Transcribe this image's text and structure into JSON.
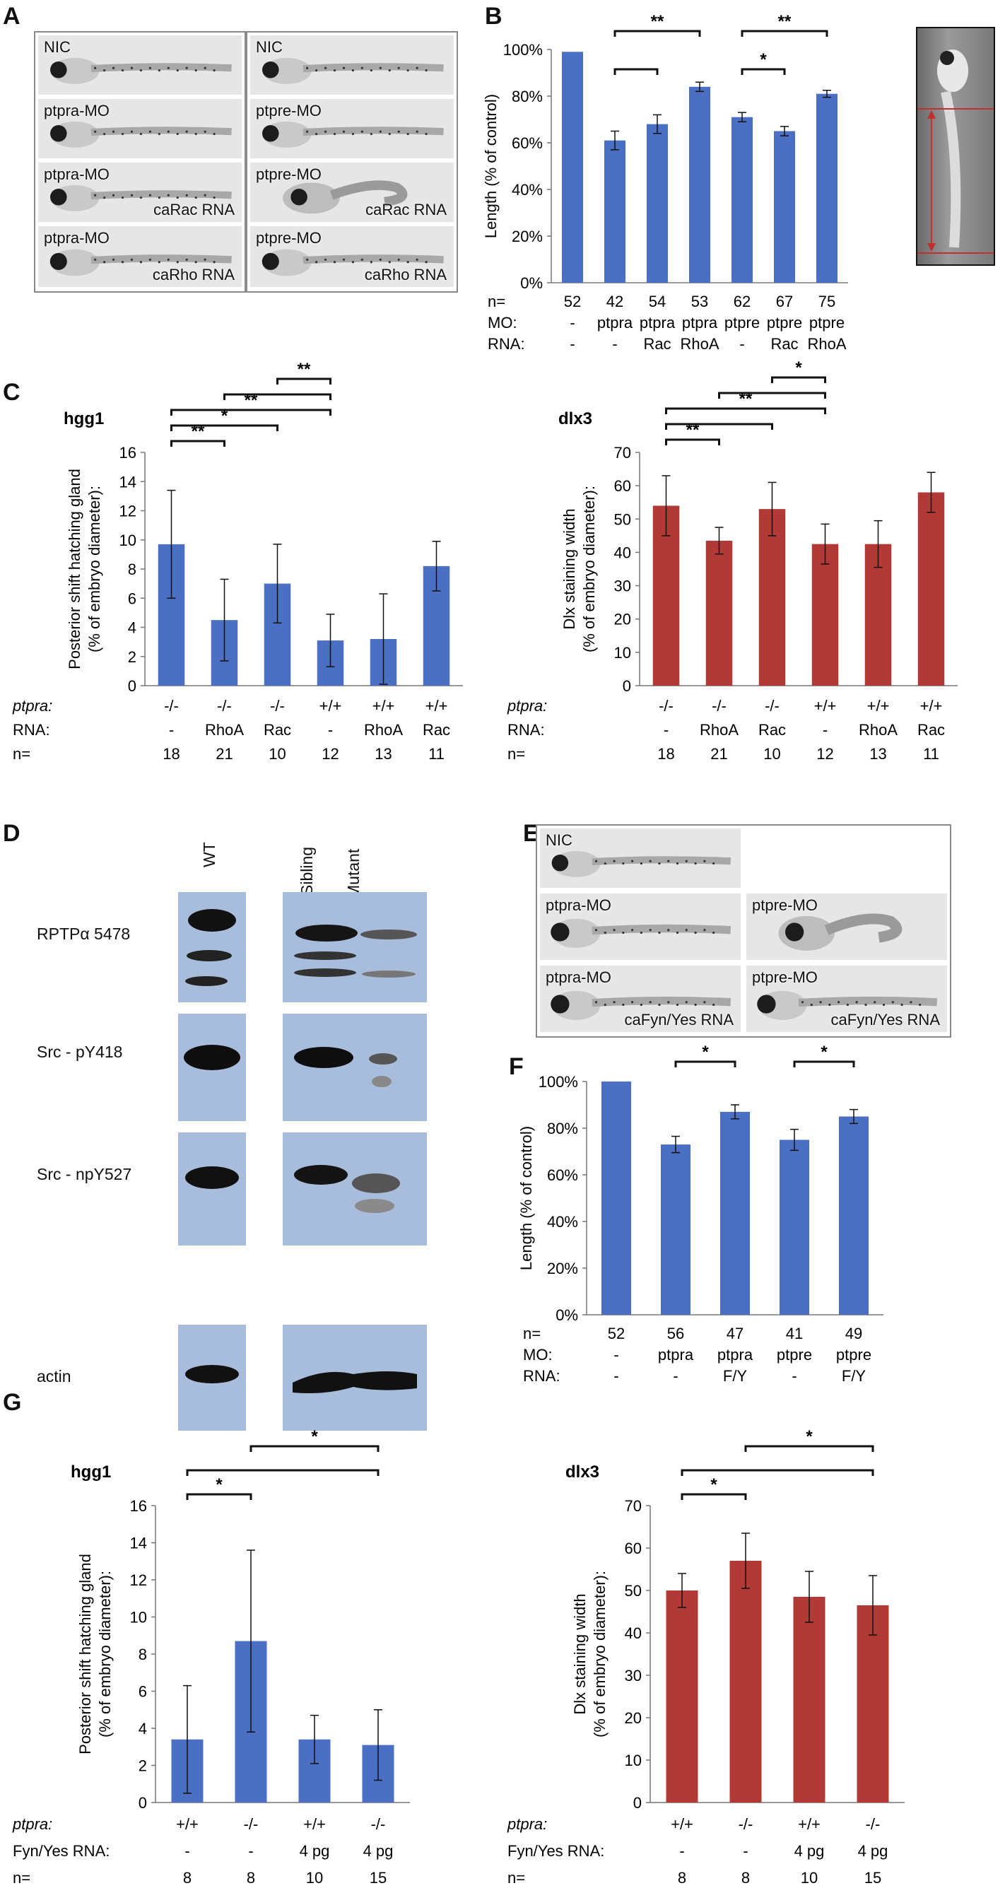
{
  "panels": {
    "A": {
      "letter": "A",
      "left_tiles": [
        {
          "label": "NIC",
          "label2": ""
        },
        {
          "label": "ptpra-MO",
          "label2": ""
        },
        {
          "label": "ptpra-MO",
          "label2": "caRac RNA"
        },
        {
          "label": "ptpra-MO",
          "label2": "caRho RNA"
        }
      ],
      "right_tiles": [
        {
          "label": "NIC",
          "label2": ""
        },
        {
          "label": "ptpre-MO",
          "label2": ""
        },
        {
          "label": "ptpre-MO",
          "label2": "caRac RNA"
        },
        {
          "label": "ptpre-MO",
          "label2": "caRho RNA"
        }
      ]
    },
    "B": {
      "letter": "B"
    },
    "C": {
      "letter": "C"
    },
    "D": {
      "letter": "D",
      "lanes_left": [
        "WT"
      ],
      "lanes_right": [
        "Sibling",
        "Mutant"
      ],
      "rows": [
        "RPTPα 5478",
        "Src - pY418",
        "Src - npY527",
        "actin"
      ]
    },
    "E": {
      "letter": "E",
      "tiles": [
        {
          "label": "NIC",
          "label2": ""
        },
        {
          "label": "ptpra-MO",
          "label2": ""
        },
        {
          "label": "ptpre-MO",
          "label2": ""
        },
        {
          "label": "ptpra-MO",
          "label2": "caFyn/Yes RNA"
        },
        {
          "label": "ptpre-MO",
          "label2": "caFyn/Yes RNA"
        }
      ]
    },
    "F": {
      "letter": "F"
    },
    "G": {
      "letter": "G"
    }
  },
  "chart_data": [
    {
      "id": "B",
      "type": "bar",
      "ylabel": "Length (% of control)",
      "ylim": [
        0,
        100
      ],
      "yticks": [
        "0%",
        "20%",
        "40%",
        "60%",
        "80%",
        "100%"
      ],
      "ytick_values": [
        0,
        20,
        40,
        60,
        80,
        100
      ],
      "color": "#4a6fc3",
      "values": [
        99,
        61,
        68,
        84,
        71,
        65,
        81
      ],
      "errors": [
        0,
        4,
        4,
        2,
        2,
        2,
        1.5
      ],
      "row_labels": [
        "n=",
        "MO:",
        "RNA:"
      ],
      "rows": [
        [
          "52",
          "42",
          "54",
          "53",
          "62",
          "67",
          "75"
        ],
        [
          "-",
          "ptpra",
          "ptpra",
          "ptpra",
          "ptpre",
          "ptpre",
          "ptpre"
        ],
        [
          "-",
          "-",
          "Rac",
          "RhoA",
          "-",
          "Rac",
          "RhoA"
        ]
      ],
      "brackets": [
        {
          "from": 1,
          "to": 3,
          "level": 0,
          "label": "**"
        },
        {
          "from": 1,
          "to": 2,
          "level": 1,
          "label": ""
        },
        {
          "from": 4,
          "to": 6,
          "level": 0,
          "label": "**"
        },
        {
          "from": 4,
          "to": 5,
          "level": 1,
          "label": "*"
        }
      ]
    },
    {
      "id": "C1",
      "type": "bar",
      "title": "hgg1",
      "ylabel": "Posterior shift hatching gland (% of embryo diameter):",
      "ylim": [
        0,
        16
      ],
      "yticks": [
        "0",
        "2",
        "4",
        "6",
        "8",
        "10",
        "12",
        "14",
        "16"
      ],
      "ytick_values": [
        0,
        2,
        4,
        6,
        8,
        10,
        12,
        14,
        16
      ],
      "color": "#4a6fc3",
      "values": [
        9.7,
        4.5,
        7.0,
        3.1,
        3.2,
        8.2
      ],
      "errors": [
        3.7,
        2.8,
        2.7,
        1.8,
        3.1,
        1.7
      ],
      "row_labels": [
        "ptpra:",
        "RNA:",
        "n="
      ],
      "rows": [
        [
          "-/-",
          "-/-",
          "-/-",
          "+/+",
          "+/+",
          "+/+"
        ],
        [
          "-",
          "RhoA",
          "Rac",
          "-",
          "RhoA",
          "Rac"
        ],
        [
          "18",
          "21",
          "10",
          "12",
          "13",
          "11"
        ]
      ],
      "brackets": [
        {
          "from": 2,
          "to": 3,
          "level": 3,
          "label": "**"
        },
        {
          "from": 1,
          "to": 3,
          "level": 2,
          "label": ""
        },
        {
          "from": 0,
          "to": 3,
          "level": 1,
          "label": "**"
        },
        {
          "from": 0,
          "to": 2,
          "level": 0,
          "label": "*"
        },
        {
          "from": 0,
          "to": 1,
          "level": -1,
          "label": "**"
        }
      ]
    },
    {
      "id": "C2",
      "type": "bar",
      "title": "dlx3",
      "ylabel": "Dlx staining width (% of embryo diameter):",
      "ylim": [
        0,
        70
      ],
      "yticks": [
        "0",
        "10",
        "20",
        "30",
        "40",
        "50",
        "60",
        "70"
      ],
      "ytick_values": [
        0,
        10,
        20,
        30,
        40,
        50,
        60,
        70
      ],
      "color": "#b13a36",
      "values": [
        54,
        43.5,
        53,
        42.5,
        42.5,
        58
      ],
      "errors": [
        9,
        4,
        8,
        6,
        7,
        6
      ],
      "row_labels": [
        "ptpra:",
        "RNA:",
        "n="
      ],
      "rows": [
        [
          "-/-",
          "-/-",
          "-/-",
          "+/+",
          "+/+",
          "+/+"
        ],
        [
          "-",
          "RhoA",
          "Rac",
          "-",
          "RhoA",
          "Rac"
        ],
        [
          "18",
          "21",
          "10",
          "12",
          "13",
          "11"
        ]
      ],
      "brackets": [
        {
          "from": 2,
          "to": 3,
          "level": 3,
          "label": "*"
        },
        {
          "from": 1,
          "to": 3,
          "level": 2,
          "label": ""
        },
        {
          "from": 0,
          "to": 3,
          "level": 1,
          "label": "**"
        },
        {
          "from": 0,
          "to": 2,
          "level": 0,
          "label": ""
        },
        {
          "from": 0,
          "to": 1,
          "level": -1,
          "label": "**"
        }
      ]
    },
    {
      "id": "F",
      "type": "bar",
      "ylabel": "Length (% of control)",
      "ylim": [
        0,
        100
      ],
      "yticks": [
        "0%",
        "20%",
        "40%",
        "60%",
        "80%",
        "100%"
      ],
      "ytick_values": [
        0,
        20,
        40,
        60,
        80,
        100
      ],
      "color": "#4a6fc3",
      "values": [
        100,
        73,
        87,
        75,
        85
      ],
      "errors": [
        0,
        3.5,
        3,
        4.5,
        3
      ],
      "row_labels": [
        "n=",
        "MO:",
        "RNA:"
      ],
      "rows": [
        [
          "52",
          "56",
          "47",
          "41",
          "49"
        ],
        [
          "-",
          "ptpra",
          "ptpra",
          "ptpre",
          "ptpre"
        ],
        [
          "-",
          "-",
          "F/Y",
          "-",
          "F/Y"
        ]
      ],
      "brackets": [
        {
          "from": 1,
          "to": 2,
          "level": 0,
          "label": "*"
        },
        {
          "from": 3,
          "to": 4,
          "level": 0,
          "label": "*"
        }
      ]
    },
    {
      "id": "G1",
      "type": "bar",
      "title": "hgg1",
      "ylabel": "Posterior shift hatching gland (% of embryo diameter):",
      "ylim": [
        0,
        16
      ],
      "yticks": [
        "0",
        "2",
        "4",
        "6",
        "8",
        "10",
        "12",
        "14",
        "16"
      ],
      "ytick_values": [
        0,
        2,
        4,
        6,
        8,
        10,
        12,
        14,
        16
      ],
      "color": "#4a6fc3",
      "values": [
        3.4,
        8.7,
        3.4,
        3.1
      ],
      "errors": [
        2.9,
        4.9,
        1.3,
        1.9
      ],
      "row_labels": [
        "ptpra:",
        "Fyn/Yes RNA:",
        "n="
      ],
      "rows": [
        [
          "+/+",
          "-/-",
          "+/+",
          "-/-"
        ],
        [
          "-",
          "-",
          "4 pg",
          "4 pg"
        ],
        [
          "8",
          "8",
          "10",
          "15"
        ]
      ],
      "brackets": [
        {
          "from": 1,
          "to": 3,
          "level": 2,
          "label": "*"
        },
        {
          "from": 0,
          "to": 3,
          "level": 1,
          "label": ""
        },
        {
          "from": 0,
          "to": 1,
          "level": 0,
          "label": "*"
        }
      ]
    },
    {
      "id": "G2",
      "type": "bar",
      "title": "dlx3",
      "ylabel": "Dlx staining width (% of embryo diameter):",
      "ylim": [
        0,
        70
      ],
      "yticks": [
        "0",
        "10",
        "20",
        "30",
        "40",
        "50",
        "60",
        "70"
      ],
      "ytick_values": [
        0,
        10,
        20,
        30,
        40,
        50,
        60,
        70
      ],
      "color": "#b13a36",
      "values": [
        50,
        57,
        48.5,
        46.5
      ],
      "errors": [
        4,
        6.5,
        6,
        7
      ],
      "row_labels": [
        "ptpra:",
        "Fyn/Yes RNA:",
        "n="
      ],
      "rows": [
        [
          "+/+",
          "-/-",
          "+/+",
          "-/-"
        ],
        [
          "-",
          "-",
          "4 pg",
          "4 pg"
        ],
        [
          "8",
          "8",
          "10",
          "15"
        ]
      ],
      "brackets": [
        {
          "from": 1,
          "to": 3,
          "level": 2,
          "label": "*"
        },
        {
          "from": 0,
          "to": 3,
          "level": 1,
          "label": ""
        },
        {
          "from": 0,
          "to": 1,
          "level": 0,
          "label": "*"
        }
      ]
    }
  ]
}
